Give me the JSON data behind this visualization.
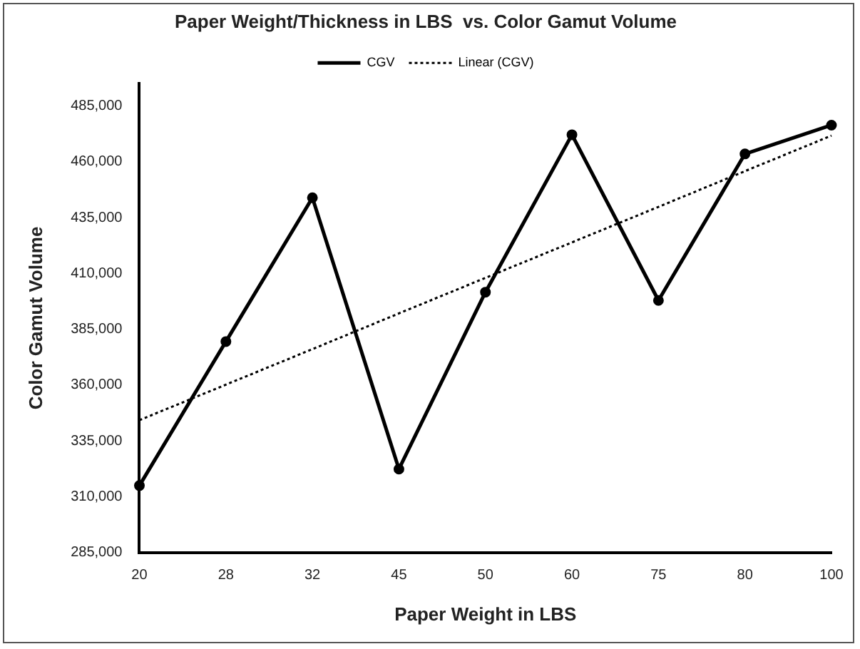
{
  "chart_data": {
    "type": "line",
    "title": "Paper Weight/Thickness in LBS  vs. Color Gamut Volume",
    "xlabel": "Paper Weight in LBS",
    "ylabel": "Color Gamut Volume",
    "categories": [
      "20",
      "28",
      "32",
      "45",
      "50",
      "60",
      "75",
      "80",
      "100"
    ],
    "series": [
      {
        "name": "CGV",
        "color": "#000000",
        "marker": "circle",
        "line_style": "solid",
        "values": [
          315000,
          379500,
          443900,
          322400,
          401600,
          472100,
          397900,
          463500,
          476400
        ]
      },
      {
        "name": "Linear (CGV)",
        "color": "#000000",
        "marker": "none",
        "line_style": "dotted",
        "values": [
          344300,
          360200,
          376100,
          392100,
          408000,
          423900,
          439800,
          455800,
          471700
        ]
      }
    ],
    "ylim": [
      285000,
      495000
    ],
    "yticks": [
      {
        "value": 285000,
        "label": "285,000"
      },
      {
        "value": 310000,
        "label": "310,000"
      },
      {
        "value": 335000,
        "label": "335,000"
      },
      {
        "value": 360000,
        "label": "360,000"
      },
      {
        "value": 385000,
        "label": "385,000"
      },
      {
        "value": 410000,
        "label": "410,000"
      },
      {
        "value": 435000,
        "label": "435,000"
      },
      {
        "value": 460000,
        "label": "460,000"
      },
      {
        "value": 485000,
        "label": "485,000"
      }
    ],
    "grid": false,
    "legend": "top"
  }
}
